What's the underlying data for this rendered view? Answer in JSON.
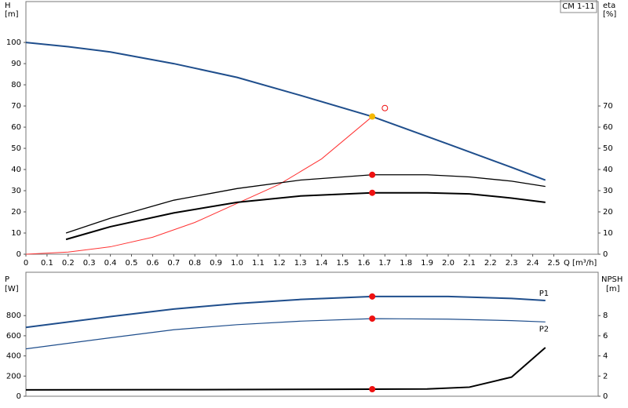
{
  "chart_data": [
    {
      "type": "line",
      "product_label": "CM 1-11",
      "ylabel": "H",
      "yunit": "[m]",
      "y2label": "eta",
      "y2unit": "[%]",
      "xlabel": "Q [m³/h]",
      "xlim": [
        0,
        2.71
      ],
      "ylim": [
        0,
        119.3
      ],
      "y2lim": [
        0,
        119.3
      ],
      "xticks": [
        0,
        0.1,
        0.2,
        0.3,
        0.4,
        0.5,
        0.6,
        0.7,
        0.8,
        0.9,
        {
          "value": 1,
          "label": "1.0"
        },
        1.1,
        1.2,
        1.3,
        1.4,
        1.5,
        1.6,
        1.7,
        1.8,
        1.9,
        {
          "value": 2,
          "label": "2.0"
        },
        2.1,
        2.2,
        2.3,
        2.4,
        2.5
      ],
      "yticks": [
        0,
        10,
        20,
        30,
        40,
        50,
        60,
        70,
        80,
        90,
        100
      ],
      "y2ticks": [
        0,
        10,
        20,
        30,
        40,
        50,
        60,
        70
      ],
      "series": [
        {
          "color": "#1f4e8c",
          "width": 2,
          "x": [
            0,
            0.2,
            0.4,
            0.7,
            1.0,
            1.3,
            1.64,
            2.0,
            2.3,
            2.46
          ],
          "values": [
            100,
            98,
            95.5,
            90,
            83.5,
            75,
            65,
            52,
            41,
            35
          ]
        },
        {
          "color": "#ff3333",
          "width": 1,
          "axis": "y2",
          "x": [
            0,
            0.2,
            0.4,
            0.6,
            0.8,
            1.0,
            1.2,
            1.4,
            1.64
          ],
          "values": [
            0,
            1,
            3.5,
            8,
            15,
            24,
            33,
            45,
            65
          ]
        },
        {
          "color": "#000000",
          "width": 1.3,
          "axis": "y2",
          "x": [
            0.19,
            0.4,
            0.7,
            1.0,
            1.3,
            1.64,
            1.9,
            2.1,
            2.3,
            2.46
          ],
          "values": [
            10,
            17,
            25.5,
            31,
            35,
            37.5,
            37.5,
            36.5,
            34.5,
            32
          ]
        },
        {
          "color": "#000000",
          "width": 2,
          "axis": "y2",
          "x": [
            0.19,
            0.4,
            0.7,
            1.0,
            1.3,
            1.64,
            1.9,
            2.1,
            2.3,
            2.46
          ],
          "values": [
            7,
            13,
            19.5,
            24.5,
            27.5,
            29,
            29,
            28.5,
            26.5,
            24.5
          ]
        }
      ],
      "markers": [
        {
          "x": 1.64,
          "y": 65,
          "color": "#f5b800"
        },
        {
          "x": 1.64,
          "y": 37.5,
          "color": "#ee1111",
          "axis": "y2"
        },
        {
          "x": 1.64,
          "y": 29,
          "color": "#ee1111",
          "axis": "y2"
        },
        {
          "x": 1.7,
          "y": 69,
          "color": "#ee1111",
          "hollow": true,
          "axis": "y2"
        }
      ]
    },
    {
      "type": "line",
      "ylabel": "P",
      "yunit": "[W]",
      "y2label": "NPSH",
      "y2unit": "[m]",
      "xlim": [
        0,
        2.71
      ],
      "ylim": [
        0,
        1230
      ],
      "y2lim": [
        0,
        12.3
      ],
      "yticks": [
        0,
        200,
        400,
        600,
        800
      ],
      "y2ticks": [
        0,
        2,
        4,
        6,
        8
      ],
      "series": [
        {
          "name": "P1",
          "color": "#1f4e8c",
          "width": 2,
          "x": [
            0,
            0.4,
            0.7,
            1.0,
            1.3,
            1.64,
            2.0,
            2.3,
            2.46
          ],
          "values": [
            683,
            790,
            865,
            920,
            960,
            990,
            990,
            970,
            950
          ]
        },
        {
          "name": "P2",
          "color": "#1f4e8c",
          "width": 1.2,
          "x": [
            0,
            0.4,
            0.7,
            1.0,
            1.3,
            1.64,
            2.0,
            2.3,
            2.46
          ],
          "values": [
            470,
            580,
            660,
            710,
            745,
            770,
            765,
            750,
            737
          ]
        },
        {
          "color": "#000000",
          "width": 2,
          "axis": "y2",
          "x": [
            0,
            0.7,
            1.3,
            1.64,
            1.9,
            2.1,
            2.3,
            2.46
          ],
          "values": [
            0.63,
            0.65,
            0.68,
            0.7,
            0.72,
            0.9,
            1.9,
            4.83
          ]
        }
      ],
      "markers": [
        {
          "x": 1.64,
          "y": 990,
          "color": "#ee1111"
        },
        {
          "x": 1.64,
          "y": 770,
          "color": "#ee1111"
        },
        {
          "x": 1.64,
          "y": 0.7,
          "color": "#ee1111",
          "axis": "y2"
        }
      ]
    }
  ]
}
